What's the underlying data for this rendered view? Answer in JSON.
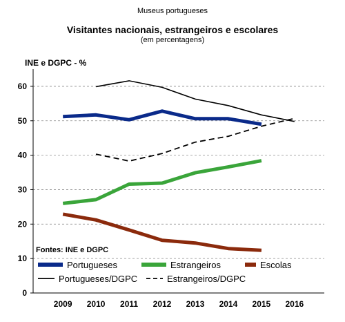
{
  "header": {
    "supertitle": "Museus portugueses",
    "title": "Visitantes nacionais, estrangeiros e escolares",
    "subtitle": "(em percentagens)"
  },
  "chart_data": {
    "type": "line",
    "title": "Visitantes nacionais, estrangeiros e escolares",
    "subtitle": "(em percentagens)",
    "ylabel": "INE e DGPC - %",
    "source_note": "Fontes: INE e DGPC",
    "x": [
      2009,
      2010,
      2011,
      2012,
      2013,
      2014,
      2015,
      2016
    ],
    "x_tick_labels": [
      "2009",
      "2010",
      "2011",
      "2012",
      "2013",
      "2014",
      "2015",
      "2016"
    ],
    "ylim": [
      0,
      65
    ],
    "y_ticks": [
      0,
      10,
      20,
      30,
      40,
      50,
      60
    ],
    "y_tick_labels": [
      "0",
      "10",
      "20",
      "30",
      "40",
      "50",
      "60"
    ],
    "grid": "horizontal dashed",
    "legend_position": "bottom",
    "series": [
      {
        "name": "Portugueses",
        "color": "#0a2a8a",
        "style": "thick",
        "x": [
          2009,
          2010,
          2011,
          2012,
          2013,
          2014,
          2015
        ],
        "values": [
          51.2,
          51.7,
          50.3,
          52.8,
          50.6,
          50.6,
          49.0
        ]
      },
      {
        "name": "Estrangeiros",
        "color": "#3aa53a",
        "style": "thick",
        "x": [
          2009,
          2010,
          2011,
          2012,
          2013,
          2014,
          2015
        ],
        "values": [
          26.0,
          27.1,
          31.6,
          31.9,
          34.9,
          36.6,
          38.4
        ]
      },
      {
        "name": "Escolas",
        "color": "#8b2a0c",
        "style": "thick",
        "x": [
          2009,
          2010,
          2011,
          2012,
          2013,
          2014,
          2015
        ],
        "values": [
          22.9,
          21.2,
          18.3,
          15.3,
          14.5,
          12.9,
          12.4
        ]
      },
      {
        "name": "Portugueses/DGPC",
        "color": "#000000",
        "style": "solid-thin",
        "x": [
          2010,
          2011,
          2012,
          2013,
          2014,
          2015,
          2016
        ],
        "values": [
          59.9,
          61.6,
          59.7,
          56.3,
          54.4,
          51.7,
          49.8
        ]
      },
      {
        "name": "Estrangeiros/DGPC",
        "color": "#000000",
        "style": "dashed-thin",
        "x": [
          2010,
          2011,
          2012,
          2013,
          2014,
          2015,
          2016
        ],
        "values": [
          40.3,
          38.3,
          40.5,
          43.8,
          45.5,
          48.4,
          50.7
        ]
      }
    ]
  }
}
